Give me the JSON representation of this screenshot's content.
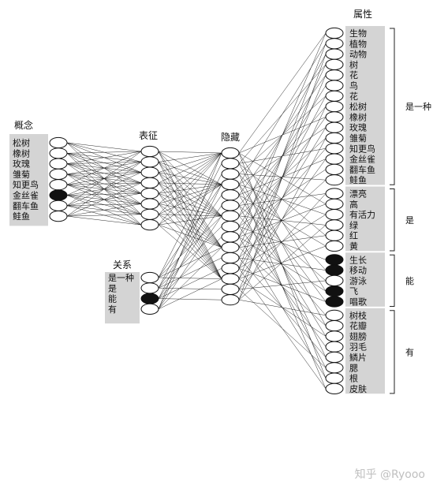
{
  "headers": {
    "concept": "概念",
    "representation": "表征",
    "hidden": "隐藏",
    "relation": "关系",
    "attribute": "属性"
  },
  "concepts": [
    {
      "label": "松树",
      "active": false
    },
    {
      "label": "橡树",
      "active": false
    },
    {
      "label": "玫瑰",
      "active": false
    },
    {
      "label": "雏菊",
      "active": false
    },
    {
      "label": "知更鸟",
      "active": false
    },
    {
      "label": "金丝雀",
      "active": true
    },
    {
      "label": "翻车鱼",
      "active": false
    },
    {
      "label": "鲑鱼",
      "active": false
    }
  ],
  "relations": [
    {
      "label": "是一种",
      "active": false
    },
    {
      "label": "是",
      "active": false
    },
    {
      "label": "能",
      "active": true
    },
    {
      "label": "有",
      "active": false
    }
  ],
  "attribute_groups": [
    {
      "name": "是一种",
      "items": [
        {
          "label": "生物",
          "active": false
        },
        {
          "label": "植物",
          "active": false
        },
        {
          "label": "动物",
          "active": false
        },
        {
          "label": "树",
          "active": false
        },
        {
          "label": "花",
          "active": false
        },
        {
          "label": "鸟",
          "active": false
        },
        {
          "label": "花",
          "active": false
        },
        {
          "label": "松树",
          "active": false
        },
        {
          "label": "橡树",
          "active": false
        },
        {
          "label": "玫瑰",
          "active": false
        },
        {
          "label": "雏菊",
          "active": false
        },
        {
          "label": "知更鸟",
          "active": false
        },
        {
          "label": "金丝雀",
          "active": false
        },
        {
          "label": "翻车鱼",
          "active": false
        },
        {
          "label": "鲑鱼",
          "active": false
        }
      ]
    },
    {
      "name": "是",
      "items": [
        {
          "label": "漂亮",
          "active": false
        },
        {
          "label": "高",
          "active": false
        },
        {
          "label": "有活力",
          "active": false
        },
        {
          "label": "绿",
          "active": false
        },
        {
          "label": "红",
          "active": false
        },
        {
          "label": "黄",
          "active": false
        }
      ]
    },
    {
      "name": "能",
      "items": [
        {
          "label": "生长",
          "active": true
        },
        {
          "label": "移动",
          "active": true
        },
        {
          "label": "游泳",
          "active": false
        },
        {
          "label": "飞",
          "active": true
        },
        {
          "label": "唱歌",
          "active": true
        }
      ]
    },
    {
      "name": "有",
      "items": [
        {
          "label": "树枝",
          "active": false
        },
        {
          "label": "花瓣",
          "active": false
        },
        {
          "label": "翅膀",
          "active": false
        },
        {
          "label": "羽毛",
          "active": false
        },
        {
          "label": "鳞片",
          "active": false
        },
        {
          "label": "腮",
          "active": false
        },
        {
          "label": "根",
          "active": false
        },
        {
          "label": "皮肤",
          "active": false
        }
      ]
    }
  ],
  "representation_units": 8,
  "hidden_units": 15,
  "watermark": "知乎 @Ryooo"
}
